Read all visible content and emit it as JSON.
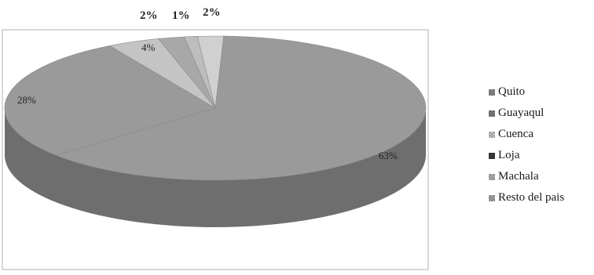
{
  "chart_data": {
    "type": "pie",
    "style": "3d",
    "title": "",
    "categories": [
      "Quito",
      "Guayaquil",
      "Cuenca",
      "Loja",
      "Machala",
      "Resto del pais"
    ],
    "values": [
      63,
      28,
      4,
      2,
      1,
      2
    ],
    "data_labels": [
      "63%",
      "28%",
      "4%",
      "2%",
      "1%",
      "2%"
    ],
    "legend_placement": "right",
    "colors": {
      "main_top": "#9a9a9a",
      "main_side": "#6e6e6e",
      "small_slice": "#c4c4c4",
      "frame": "#b0b0b0"
    }
  },
  "legend": {
    "items": [
      {
        "label": "Quito",
        "color": "#8c8c8c"
      },
      {
        "label": "Guayaqul",
        "color": "#7f7f7f"
      },
      {
        "label": "Cuenca",
        "color": "#c8c8c8"
      },
      {
        "label": "Loja",
        "color": "#3c3c3c"
      },
      {
        "label": "Machala",
        "color": "#b4b4b4"
      },
      {
        "label": "Resto del pais",
        "color": "#a8a8a8"
      }
    ]
  }
}
